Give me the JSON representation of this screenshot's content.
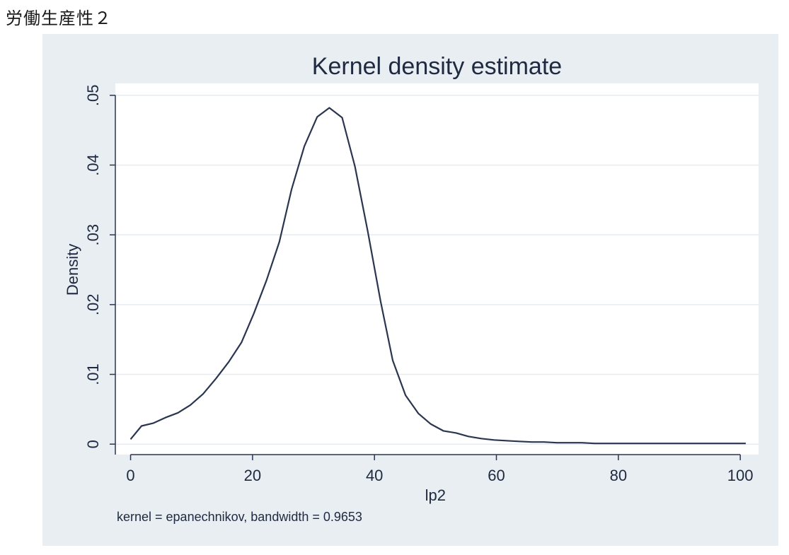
{
  "page": {
    "heading": "労働生産性２"
  },
  "chart_data": {
    "type": "line",
    "title": "Kernel density estimate",
    "xlabel": "lp2",
    "ylabel": "Density",
    "note": "kernel = epanechnikov, bandwidth = 0.9653",
    "xlim": [
      -2.5,
      103
    ],
    "ylim": [
      -0.0015,
      0.0517
    ],
    "x_ticks": [
      0,
      20,
      40,
      60,
      80,
      100
    ],
    "x_tick_labels": [
      "0",
      "20",
      "40",
      "60",
      "80",
      "100"
    ],
    "y_ticks": [
      0,
      0.01,
      0.02,
      0.03,
      0.04,
      0.05
    ],
    "y_tick_labels": [
      "0",
      ".01",
      ".02",
      ".03",
      ".04",
      ".05"
    ],
    "grid": true,
    "colors": {
      "line": "#2b3550",
      "plot_bg": "#ffffff",
      "frame_bg": "#e8eef2",
      "grid": "#e5ebef"
    },
    "series": [
      {
        "x": [
          0,
          1.8,
          3.7,
          5.7,
          7.8,
          9.8,
          11.9,
          14,
          16.1,
          18.2,
          20.2,
          22.3,
          24.4,
          26.4,
          28.5,
          30.6,
          32.6,
          34.7,
          36.8,
          38.9,
          41,
          43,
          45.1,
          47.2,
          49.2,
          51.3,
          53.4,
          55.4,
          57.5,
          59.6,
          61.6,
          63.7,
          65.8,
          67.8,
          69.9,
          72,
          74,
          76.1,
          78.2,
          80.2,
          82.3,
          84.4,
          86.4,
          88.5,
          90.6,
          92.6,
          94.7,
          96.8,
          98.8,
          100.9
        ],
        "y": [
          0.0007,
          0.0026,
          0.003,
          0.0038,
          0.0045,
          0.0056,
          0.0072,
          0.0094,
          0.0118,
          0.0146,
          0.0187,
          0.0235,
          0.029,
          0.0365,
          0.0427,
          0.0469,
          0.0482,
          0.0468,
          0.0398,
          0.0305,
          0.0205,
          0.012,
          0.007,
          0.0044,
          0.0029,
          0.0019,
          0.0016,
          0.0011,
          0.0008,
          0.0006,
          0.0005,
          0.0004,
          0.0003,
          0.0003,
          0.0002,
          0.0002,
          0.0002,
          0.0001,
          0.0001,
          0.0001,
          0.0001,
          0.0001,
          0.0001,
          0.0001,
          0.0001,
          0.0001,
          0.0001,
          0.0001,
          0.0001,
          0.0001
        ]
      }
    ]
  }
}
